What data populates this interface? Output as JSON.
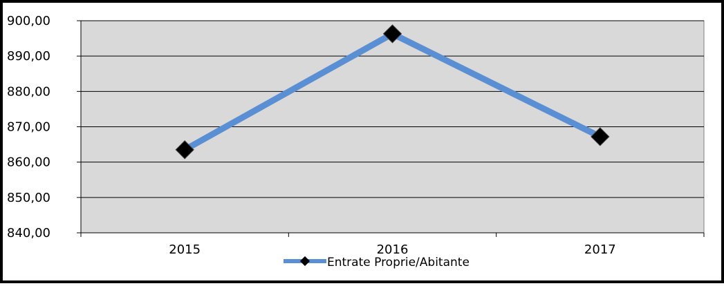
{
  "chart_data": {
    "type": "line",
    "categories": [
      "2015",
      "2016",
      "2017"
    ],
    "series": [
      {
        "name": "Entrate Proprie/Abitante",
        "values": [
          863.5,
          896.3,
          867.2
        ],
        "color": "#5B8FD3",
        "marker": "diamond",
        "marker_color": "#000000"
      }
    ],
    "yticks": [
      "900,00",
      "890,00",
      "880,00",
      "870,00",
      "860,00",
      "850,00",
      "840,00"
    ],
    "ylim": [
      840,
      900
    ],
    "ystep": 10,
    "grid": true,
    "plot_background": "#D9D9D9",
    "legend_position": "bottom",
    "title": "",
    "xlabel": "",
    "ylabel": ""
  }
}
